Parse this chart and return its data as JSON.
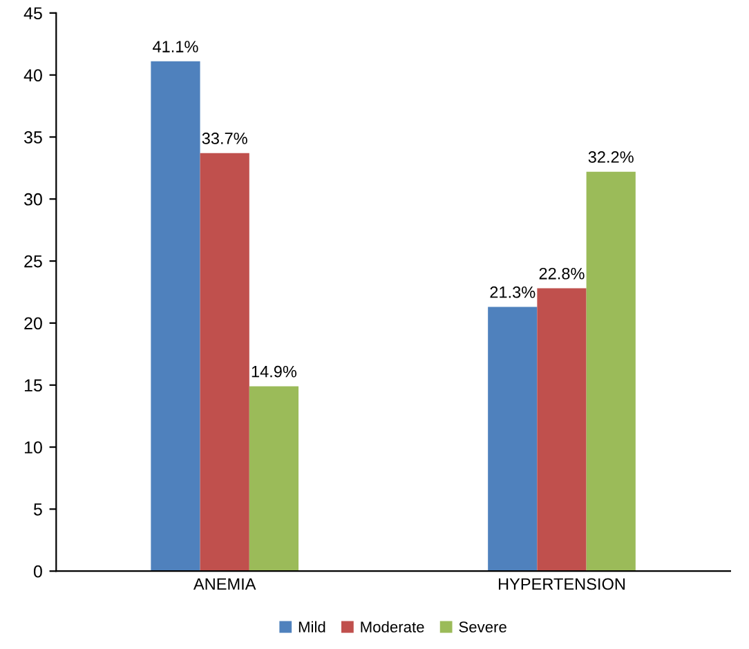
{
  "chart_data": {
    "type": "bar",
    "categories": [
      "ANEMIA",
      "HYPERTENSION"
    ],
    "series": [
      {
        "name": "Mild",
        "color": "#4f81bd",
        "values": [
          41.1,
          21.3
        ],
        "value_labels": [
          "41.1%",
          "21.3%"
        ]
      },
      {
        "name": "Moderate",
        "color": "#c0504d",
        "values": [
          33.7,
          22.8
        ],
        "value_labels": [
          "33.7%",
          "22.8%"
        ]
      },
      {
        "name": "Severe",
        "color": "#9bbb59",
        "values": [
          14.9,
          32.2
        ],
        "value_labels": [
          "14.9%",
          "32.2%"
        ]
      }
    ],
    "ylim": [
      0,
      45
    ],
    "yticks": [
      0,
      5,
      10,
      15,
      20,
      25,
      30,
      35,
      40,
      45
    ],
    "grid": false,
    "legend": "bottom"
  }
}
